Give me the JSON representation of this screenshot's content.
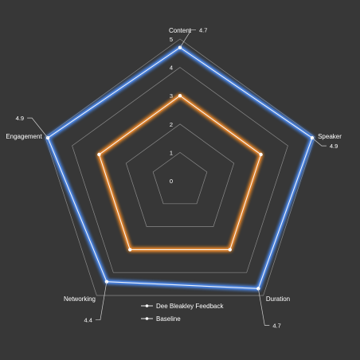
{
  "chart_data": {
    "type": "radar",
    "categories": [
      "Content",
      "Speaker",
      "Duration",
      "Networking",
      "Engagement"
    ],
    "rlim": [
      0,
      5
    ],
    "ticks": [
      "0",
      "1",
      "2",
      "3",
      "4",
      "5"
    ],
    "grid": true,
    "legend_position": "bottom",
    "series": [
      {
        "name": "Dee Bleakley Feedback",
        "values": [
          4.7,
          4.9,
          4.7,
          4.4,
          4.9
        ],
        "value_labels": [
          "4.7",
          "4.9",
          "4.7",
          "4.4",
          "4.9"
        ],
        "color": "#4c8cf5"
      },
      {
        "name": "Baseline",
        "values": [
          3,
          3,
          3,
          3,
          3
        ],
        "color": "#f08a2c"
      }
    ]
  },
  "colors": {
    "background": "#373737",
    "grid": "#8a8a8a",
    "text": "#ffffff"
  }
}
